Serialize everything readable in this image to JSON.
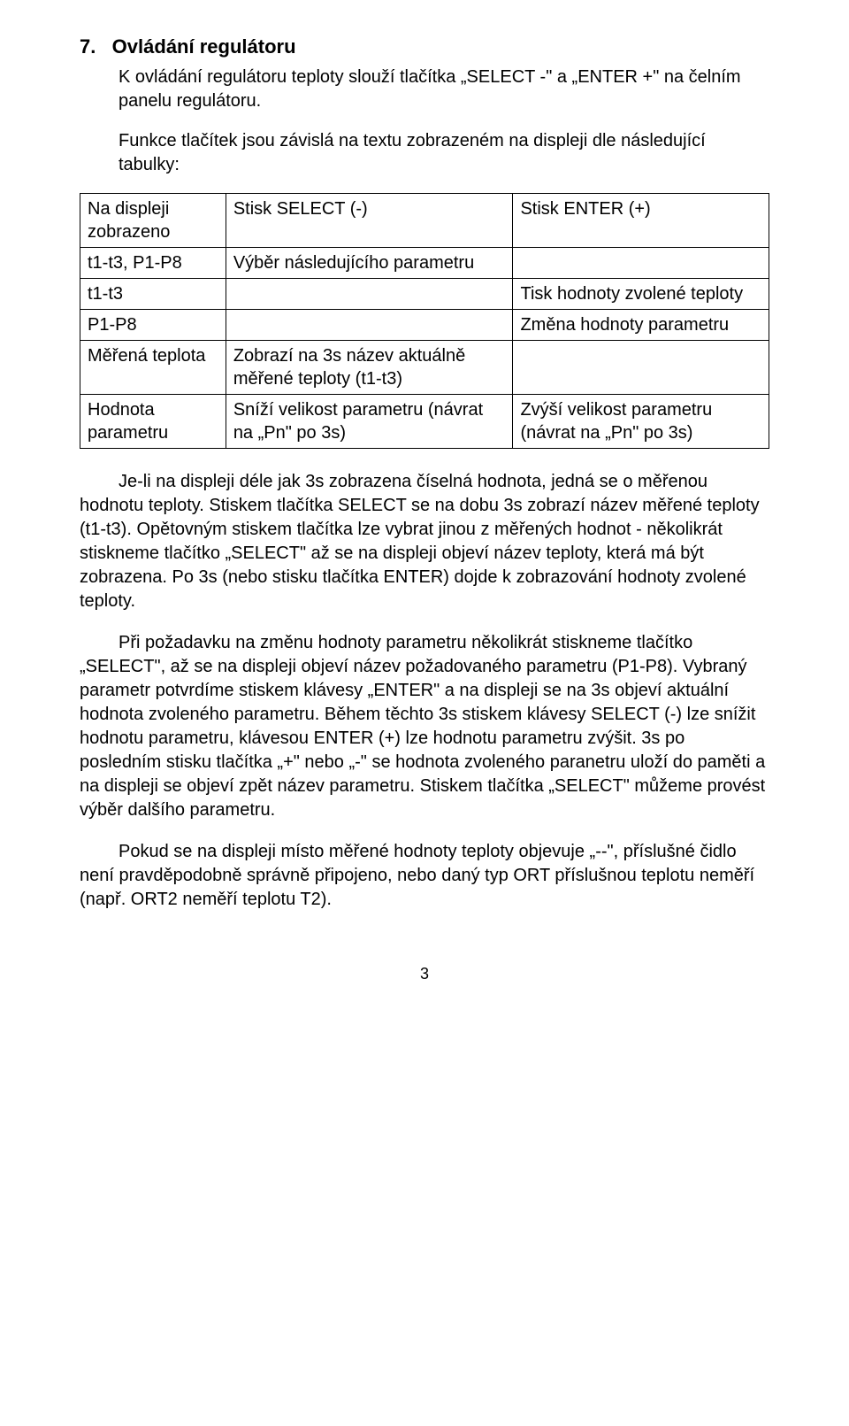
{
  "heading": "7.   Ovládání regulátoru",
  "intro": "K ovládání regulátoru teploty slouží tlačítka „SELECT -\" a „ENTER +\" na čelním panelu regulátoru.",
  "intro2": "Funkce tlačítek jsou závislá na textu zobrazeném na displeji dle následující tabulky:",
  "table": {
    "rows": [
      [
        "Na displeji zobrazeno",
        "Stisk SELECT (-)",
        "Stisk ENTER (+)"
      ],
      [
        "t1-t3, P1-P8",
        "Výběr následujícího parametru",
        ""
      ],
      [
        "t1-t3",
        "",
        "Tisk hodnoty zvolené teploty"
      ],
      [
        "P1-P8",
        "",
        "Změna hodnoty parametru"
      ],
      [
        "Měřená teplota",
        "Zobrazí na 3s název aktuálně měřené teploty (t1-t3)",
        ""
      ],
      [
        "Hodnota parametru",
        "Sníží velikost parametru (návrat na „Pn\" po 3s)",
        "Zvýší velikost parametru (návrat na „Pn\" po 3s)"
      ]
    ]
  },
  "p1": "Je-li na displeji déle jak 3s zobrazena číselná hodnota, jedná se o měřenou hodnotu teploty. Stiskem tlačítka SELECT se na dobu 3s zobrazí název měřené teploty (t1-t3). Opětovným stiskem tlačítka lze vybrat jinou z měřených hodnot - několikrát stiskneme tlačítko „SELECT\" až se na displeji objeví název teploty, která má být zobrazena. Po 3s (nebo stisku tlačítka ENTER) dojde k zobrazování hodnoty zvolené teploty.",
  "p2": "Při požadavku na změnu hodnoty parametru několikrát stiskneme tlačítko „SELECT\",  až se na displeji objeví název požadovaného parametru (P1-P8). Vybraný parametr potvrdíme stiskem klávesy „ENTER\" a na displeji se na 3s objeví aktuální hodnota zvoleného parametru. Během těchto 3s stiskem klávesy SELECT (-) lze snížit hodnotu parametru, klávesou ENTER (+) lze hodnotu parametru zvýšit. 3s po posledním stisku tlačítka „+\" nebo „-\" se hodnota zvoleného paranetru uloží do paměti a na displeji se objeví zpět název parametru. Stiskem tlačítka „SELECT\" můžeme provést výběr dalšího parametru.",
  "p3": "Pokud se na displeji místo měřené hodnoty teploty objevuje „--\", příslušné čidlo není pravděpodobně správně připojeno, nebo daný typ ORT příslušnou teplotu neměří (např. ORT2 neměří teplotu T2).",
  "page_number": "3"
}
